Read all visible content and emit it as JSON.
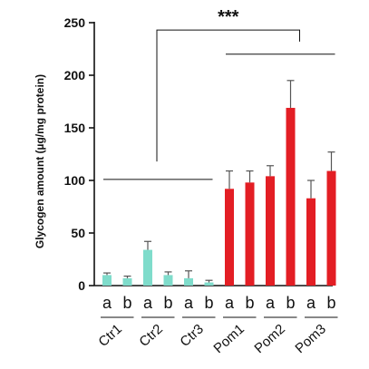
{
  "chart_data": {
    "type": "bar",
    "title": "",
    "xlabel": "",
    "ylabel": "Glycogen amount (µg/mg protein)",
    "ylim": [
      0,
      250
    ],
    "yticks": [
      0,
      50,
      100,
      150,
      200,
      250
    ],
    "grid": false,
    "legend": "none",
    "groups": [
      "Ctr1",
      "Ctr2",
      "Ctr3",
      "Pom1",
      "Pom2",
      "Pom3"
    ],
    "subcategories": [
      "a",
      "b"
    ],
    "colors": {
      "control": "#7fdccb",
      "pompe": "#e31e24"
    },
    "bars": [
      {
        "group": "Ctr1",
        "sub": "a",
        "value": 10,
        "error": 2,
        "kind": "control"
      },
      {
        "group": "Ctr1",
        "sub": "b",
        "value": 7,
        "error": 2,
        "kind": "control"
      },
      {
        "group": "Ctr2",
        "sub": "a",
        "value": 34,
        "error": 8,
        "kind": "control"
      },
      {
        "group": "Ctr2",
        "sub": "b",
        "value": 10,
        "error": 3,
        "kind": "control"
      },
      {
        "group": "Ctr3",
        "sub": "a",
        "value": 7,
        "error": 7,
        "kind": "control"
      },
      {
        "group": "Ctr3",
        "sub": "b",
        "value": 3,
        "error": 2,
        "kind": "control"
      },
      {
        "group": "Pom1",
        "sub": "a",
        "value": 92,
        "error": 17,
        "kind": "pompe"
      },
      {
        "group": "Pom1",
        "sub": "b",
        "value": 98,
        "error": 11,
        "kind": "pompe"
      },
      {
        "group": "Pom2",
        "sub": "a",
        "value": 104,
        "error": 10,
        "kind": "pompe"
      },
      {
        "group": "Pom2",
        "sub": "b",
        "value": 169,
        "error": 26,
        "kind": "pompe"
      },
      {
        "group": "Pom3",
        "sub": "a",
        "value": 83,
        "error": 17,
        "kind": "pompe"
      },
      {
        "group": "Pom3",
        "sub": "b",
        "value": 109,
        "error": 18,
        "kind": "pompe"
      }
    ],
    "significance": {
      "label": "***",
      "control_line_value": 101,
      "pompe_line_value": 220,
      "bracket_top_value": 243,
      "left_drop_value": 118,
      "right_drop_value": 232
    }
  }
}
